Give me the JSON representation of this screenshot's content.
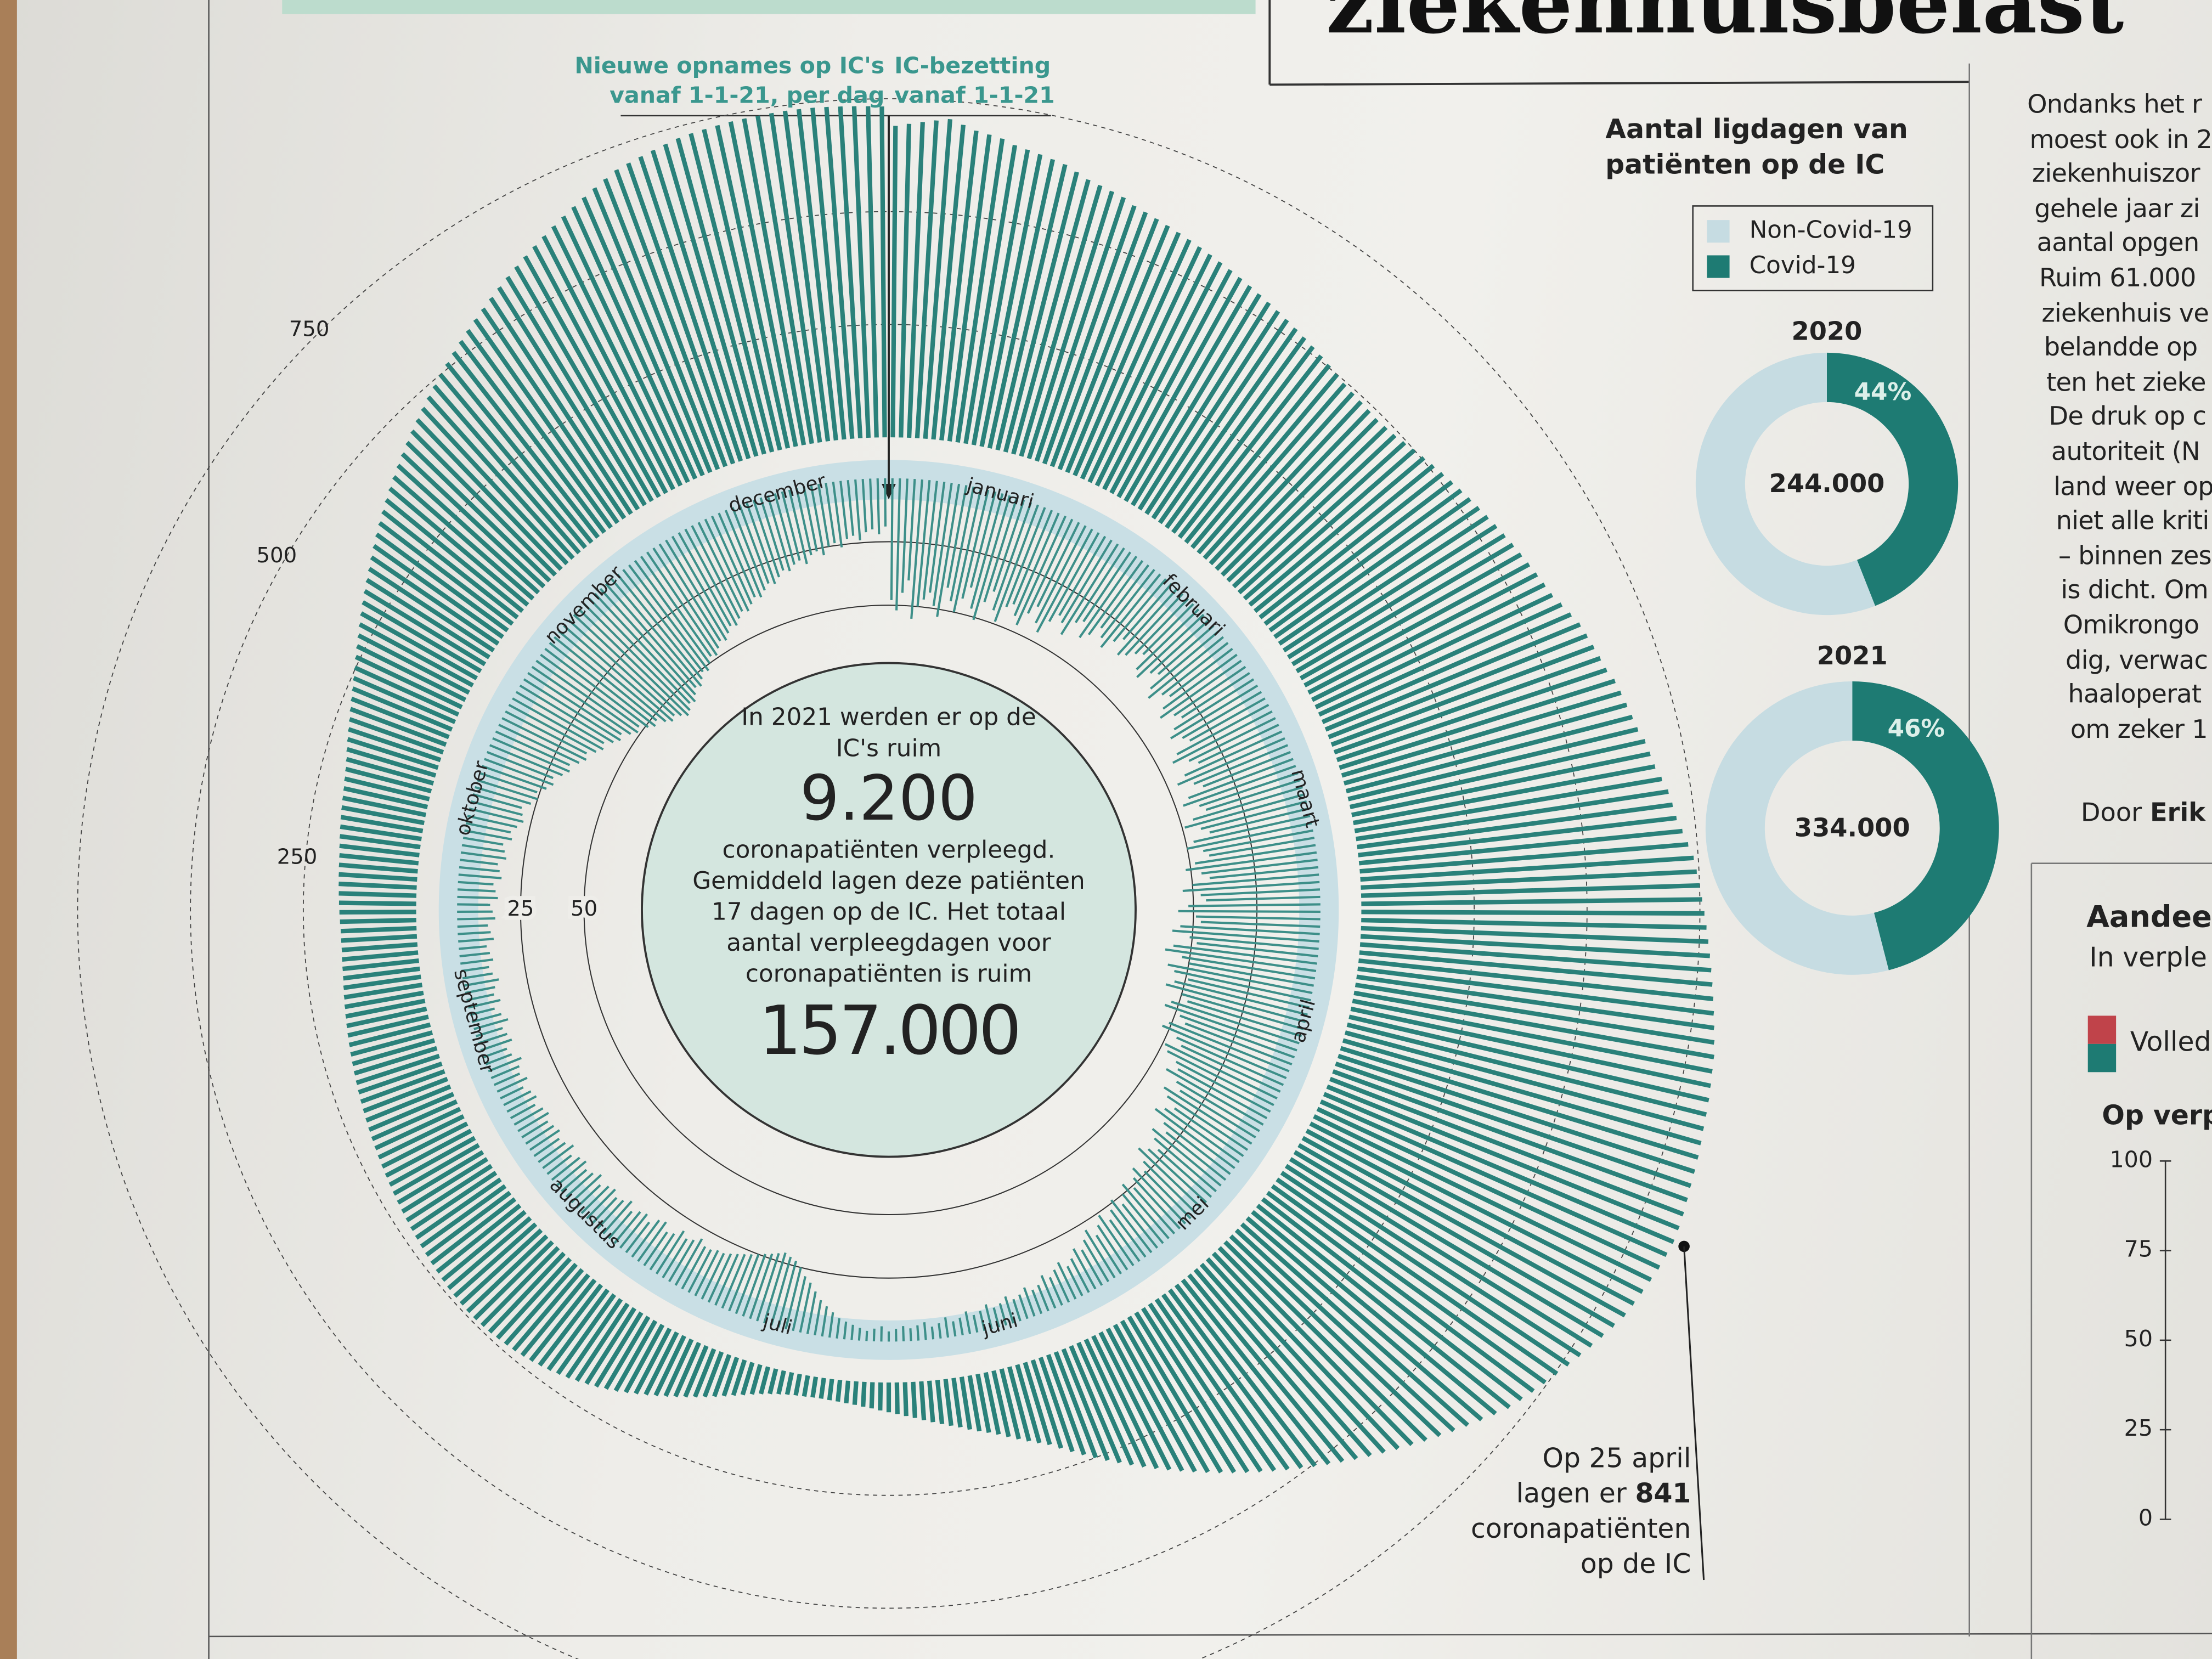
{
  "header": {
    "headline": "ziekenhuisbelast"
  },
  "chart_data": [
    {
      "type": "radial_bar",
      "months": [
        "januari",
        "februari",
        "maart",
        "april",
        "mei",
        "juni",
        "juli",
        "augustus",
        "september",
        "oktober",
        "november",
        "december"
      ],
      "series": [
        {
          "name": "Nieuwe opnames op IC's vanaf 1-1-21, per dag",
          "color": "#3d8f89",
          "axis": "y2",
          "values": [
            48,
            52,
            45,
            40,
            55,
            50,
            47,
            44,
            49,
            53,
            41,
            46,
            50,
            44,
            39,
            47,
            51,
            43,
            38,
            45,
            49,
            42,
            40,
            44,
            47,
            41,
            37,
            43,
            46,
            40,
            36,
            38,
            42,
            35,
            33,
            39,
            36,
            31,
            34,
            37,
            32,
            29,
            35,
            33,
            30,
            28,
            34,
            36,
            31,
            29,
            35,
            38,
            33,
            31,
            36,
            39,
            34,
            32,
            37,
            40,
            36,
            34,
            41,
            44,
            38,
            35,
            42,
            46,
            40,
            37,
            44,
            47,
            41,
            39,
            45,
            49,
            43,
            40,
            47,
            50,
            44,
            42,
            48,
            52,
            46,
            43,
            50,
            54,
            47,
            45,
            52,
            56,
            49,
            47,
            55,
            58,
            51,
            48,
            57,
            60,
            53,
            50,
            58,
            55,
            49,
            54,
            57,
            50,
            47,
            53,
            55,
            48,
            45,
            51,
            53,
            46,
            43,
            49,
            47,
            42,
            40,
            44,
            38,
            35,
            41,
            38,
            33,
            36,
            39,
            33,
            30,
            35,
            32,
            28,
            31,
            34,
            29,
            26,
            30,
            27,
            24,
            28,
            25,
            22,
            26,
            23,
            20,
            24,
            21,
            18,
            22,
            19,
            16,
            18,
            15,
            13,
            16,
            14,
            12,
            14,
            11,
            10,
            12,
            10,
            9,
            11,
            9,
            8,
            10,
            8,
            7,
            9,
            7,
            6,
            8,
            6,
            5,
            7,
            6,
            5,
            6,
            5,
            4,
            6,
            5,
            4,
            5,
            6,
            7,
            8,
            10,
            12,
            14,
            17,
            20,
            22,
            25,
            27,
            28,
            29,
            28,
            27,
            26,
            25,
            24,
            23,
            22,
            21,
            20,
            20,
            19,
            19,
            21,
            19,
            18,
            20,
            17,
            16,
            19,
            18,
            15,
            17,
            16,
            14,
            17,
            15,
            14,
            16,
            15,
            13,
            16,
            14,
            13,
            15,
            14,
            12,
            15,
            13,
            12,
            14,
            13,
            12,
            14,
            13,
            11,
            13,
            12,
            10,
            13,
            11,
            12,
            14,
            11,
            10,
            13,
            12,
            11,
            14,
            12,
            10,
            13,
            11,
            12,
            14,
            12,
            11,
            13,
            12,
            11,
            14,
            13,
            12,
            15,
            14,
            13,
            16,
            15,
            14,
            17,
            16,
            15,
            18,
            17,
            16,
            19,
            18,
            20,
            22,
            21,
            20,
            23,
            25,
            24,
            27,
            29,
            28,
            31,
            33,
            32,
            35,
            37,
            36,
            39,
            41,
            40,
            43,
            45,
            44,
            47,
            49,
            48,
            51,
            53,
            52,
            55,
            57,
            56,
            58,
            60,
            59,
            57,
            58,
            56,
            54,
            55,
            53,
            51,
            52,
            50,
            48,
            49,
            47,
            45,
            46,
            44,
            42,
            43,
            41,
            39,
            40,
            38,
            36,
            37,
            35,
            33,
            34,
            32,
            30,
            31,
            29,
            28,
            30,
            27,
            26,
            28,
            25,
            24,
            26,
            23,
            22,
            24,
            21,
            20,
            22,
            19
          ]
        },
        {
          "name": "IC-bezetting vanaf 1-1-21",
          "color": "#2a817a",
          "values": [
            690,
            695,
            700,
            705,
            710,
            700,
            690,
            685,
            680,
            670,
            665,
            660,
            655,
            650,
            640,
            630,
            625,
            620,
            615,
            605,
            600,
            595,
            590,
            585,
            580,
            575,
            570,
            565,
            560,
            555,
            550,
            545,
            540,
            535,
            530,
            525,
            520,
            515,
            510,
            505,
            500,
            495,
            492,
            490,
            488,
            486,
            488,
            490,
            495,
            500,
            505,
            510,
            515,
            520,
            525,
            530,
            535,
            540,
            545,
            550,
            555,
            560,
            565,
            570,
            575,
            580,
            590,
            600,
            610,
            615,
            620,
            625,
            630,
            640,
            645,
            650,
            655,
            660,
            670,
            675,
            680,
            690,
            700,
            705,
            710,
            720,
            730,
            740,
            745,
            750,
            755,
            760,
            765,
            770,
            775,
            780,
            785,
            790,
            795,
            800,
            805,
            810,
            812,
            815,
            818,
            820,
            822,
            825,
            828,
            830,
            832,
            835,
            838,
            840,
            841,
            838,
            835,
            830,
            825,
            820,
            815,
            805,
            795,
            785,
            775,
            765,
            755,
            745,
            735,
            725,
            715,
            700,
            685,
            670,
            655,
            640,
            625,
            610,
            595,
            580,
            565,
            550,
            535,
            520,
            505,
            490,
            475,
            460,
            445,
            430,
            415,
            400,
            385,
            370,
            355,
            340,
            325,
            310,
            295,
            280,
            265,
            250,
            235,
            220,
            205,
            190,
            180,
            170,
            160,
            150,
            140,
            132,
            125,
            118,
            110,
            104,
            98,
            92,
            86,
            80,
            75,
            70,
            66,
            62,
            58,
            55,
            52,
            50,
            48,
            47,
            46,
            46,
            47,
            48,
            50,
            53,
            57,
            62,
            68,
            75,
            82,
            90,
            98,
            106,
            114,
            122,
            130,
            138,
            146,
            154,
            162,
            170,
            178,
            185,
            192,
            198,
            204,
            210,
            215,
            220,
            224,
            228,
            231,
            234,
            236,
            238,
            240,
            241,
            242,
            242,
            241,
            240,
            239,
            237,
            235,
            233,
            231,
            229,
            227,
            225,
            223,
            221,
            219,
            217,
            215,
            213,
            211,
            209,
            207,
            205,
            203,
            201,
            199,
            197,
            195,
            193,
            191,
            189,
            187,
            185,
            183,
            181,
            179,
            177,
            175,
            173,
            171,
            170,
            169,
            168,
            168,
            168,
            169,
            170,
            171,
            172,
            173,
            174,
            175,
            176,
            178,
            180,
            182,
            184,
            186,
            188,
            190,
            193,
            196,
            200,
            205,
            210,
            215,
            220,
            226,
            232,
            238,
            245,
            252,
            260,
            268,
            276,
            285,
            294,
            303,
            312,
            321,
            330,
            340,
            350,
            360,
            370,
            380,
            390,
            400,
            410,
            420,
            430,
            440,
            450,
            460,
            470,
            480,
            490,
            500,
            510,
            520,
            530,
            540,
            550,
            560,
            570,
            580,
            590,
            600,
            610,
            620,
            630,
            640,
            650,
            660,
            670,
            680,
            690,
            700,
            705,
            710,
            715,
            720,
            725,
            728,
            730,
            732,
            734,
            735,
            736,
            737,
            738,
            738,
            738,
            737,
            736,
            735,
            734,
            733
          ]
        }
      ],
      "ylim": [
        0,
        900
      ],
      "yticks": [
        250,
        500,
        750
      ],
      "y2lim": [
        0,
        60
      ],
      "y2ticks": [
        25,
        50
      ],
      "center_text": [
        "In 2021 werden er op de IC's ruim",
        "9.200",
        "coronapatiënten verpleegd. Gemiddeld lagen deze patiënten 17 dagen op de IC. Het totaal aantal verpleegdagen voor coronapatiënten is ruim",
        "157.000"
      ],
      "annotation": [
        "Op 25 april",
        "lagen er",
        "coronapatiënten",
        "op de IC"
      ]
    },
    {
      "type": "donut",
      "title": "Aantal ligdagen van patiënten op de IC",
      "subtitle": "2020",
      "categories": [
        "Non-Covid-19",
        "Covid-19"
      ],
      "values": [
        56,
        44
      ],
      "value_labels": [
        null,
        "44%"
      ],
      "colors": [
        "#c6dce2",
        "#1e7b73"
      ],
      "center_label": "244.000",
      "legend": true
    },
    {
      "type": "donut",
      "subtitle": "2021",
      "categories": [
        "Non-Covid-19",
        "Covid-19"
      ],
      "values": [
        54,
        46
      ],
      "value_labels": [
        null,
        "46%"
      ],
      "colors": [
        "#c6dce2",
        "#1e7b73"
      ],
      "center_label": "334.000",
      "legend": false
    },
    {
      "type": "bar_axis",
      "title": "Aandee",
      "subtitle": "In verple",
      "axis_label": "Op verp",
      "legend": {
        "label": "Volled",
        "colors": [
          "#c0434a",
          "#1e7b73"
        ]
      },
      "ylim": [
        0,
        100
      ],
      "yticks": [
        0,
        25,
        50,
        75,
        100
      ]
    }
  ],
  "column_text": [
    "Ondanks het r",
    "moest ook in 2",
    "ziekenhuiszor",
    "gehele jaar zi",
    "aantal opgen",
    "Ruim 61.000",
    "ziekenhuis ve",
    "belandde op",
    "ten het zieke",
    "De druk op c",
    "autoriteit (N",
    "land weer op",
    "niet alle kriti",
    "– binnen zes",
    "is dicht. Om",
    "Omikrongo",
    "dig, verwac",
    "haaloperat",
    "om zeker 1"
  ],
  "byline": [
    "Door",
    "Erik"
  ]
}
